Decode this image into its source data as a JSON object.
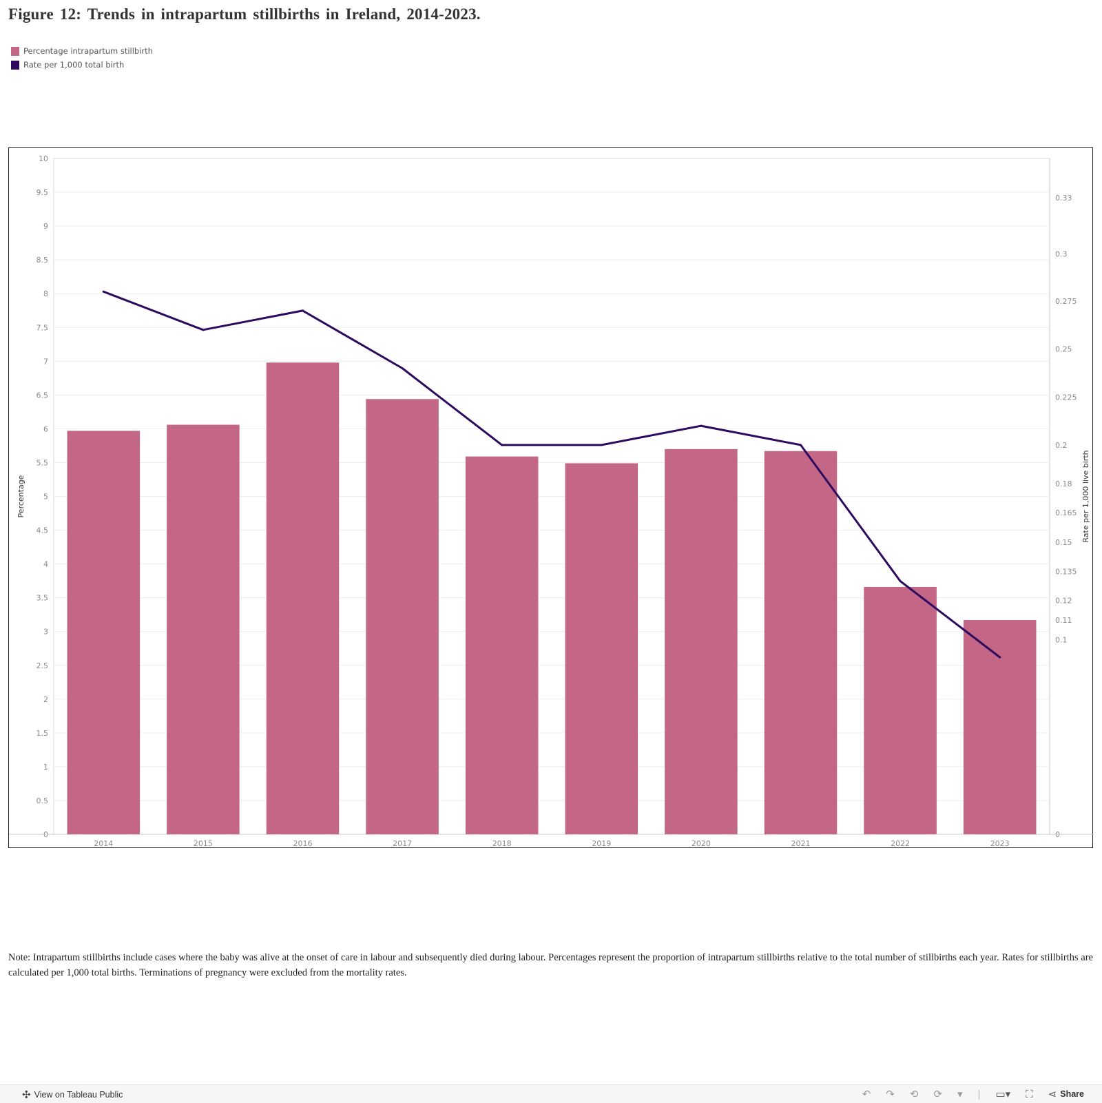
{
  "title": "Figure 12: Trends in intrapartum stillbirths in Ireland, 2014-2023.",
  "legend": [
    {
      "label": "Percentage intrapartum stillbirth",
      "color": "#c46686"
    },
    {
      "label": "Rate per 1,000 total birth",
      "color": "#2e0a5e"
    }
  ],
  "chart_data": {
    "type": "bar",
    "categories": [
      "2014",
      "2015",
      "2016",
      "2017",
      "2018",
      "2019",
      "2020",
      "2021",
      "2022",
      "2023"
    ],
    "series": [
      {
        "name": "Percentage intrapartum stillbirth",
        "type": "bar",
        "axis": "left",
        "color": "#c46686",
        "values": [
          5.97,
          6.06,
          6.98,
          6.44,
          5.59,
          5.49,
          5.7,
          5.67,
          3.66,
          3.17
        ]
      },
      {
        "name": "Rate per 1,000 total birth",
        "type": "line",
        "axis": "right",
        "color": "#2e0a5e",
        "values": [
          0.28,
          0.26,
          0.27,
          0.24,
          0.2,
          0.2,
          0.21,
          0.2,
          0.13,
          0.09
        ]
      }
    ],
    "ylabel": "Percentage",
    "ylim": [
      0,
      10
    ],
    "yticks": [
      0,
      0.5,
      1,
      1.5,
      2,
      2.5,
      3,
      3.5,
      4,
      4.5,
      5,
      5.5,
      6,
      6.5,
      7,
      7.5,
      8,
      8.5,
      9,
      9.5,
      10
    ],
    "y2label": "Rate per 1,000 live birth",
    "y2ticks": [
      "0",
      "0.1",
      "0.11",
      "0.12",
      "0.135",
      "0.15",
      "0.165",
      "0.18",
      "0.2",
      "0.225",
      "0.25",
      "0.275",
      "0.3",
      "0.33"
    ],
    "grid": true,
    "legend_position": "top-left"
  },
  "note": "Note: Intrapartum stillbirths include cases where the baby was alive at the onset of care in labour and subsequently died during labour. Percentages represent the proportion of intrapartum stillbirths relative to the total number of stillbirths each year. Rates for stillbirths are calculated per 1,000 total births. Terminations of pregnancy were excluded from the mortality rates.",
  "footer": {
    "view_label": "View on Tableau Public",
    "share_label": "Share"
  }
}
